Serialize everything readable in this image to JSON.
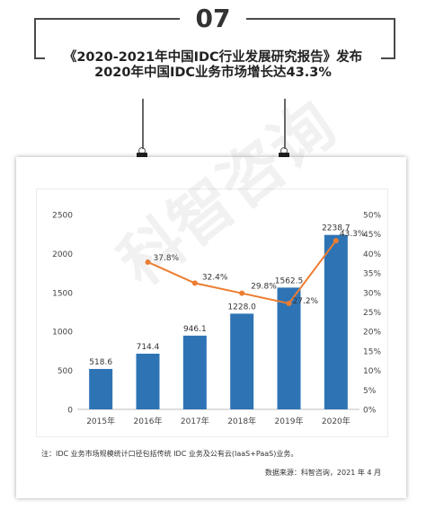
{
  "badge": "07",
  "headline": {
    "line1": "《2020-2021年中国IDC行业发展研究报告》发布",
    "line2": "2020年中国IDC业务市场增长达43.3%"
  },
  "watermark": "科智咨询",
  "note": "注：IDC 业务市场规模统计口径包括传统 IDC 业务及公有云(IaaS+PaaS)业务。",
  "source": "数据来源：科智咨询，2021 年 4 月",
  "colors": {
    "bar": "#2e74b5",
    "line": "#ed7d31"
  },
  "chart_data": {
    "type": "bar",
    "categories": [
      "2015年",
      "2016年",
      "2017年",
      "2018年",
      "2019年",
      "2020年"
    ],
    "series": [
      {
        "type": "bar",
        "axis": "left",
        "values": [
          518.6,
          714.4,
          946.1,
          1228.0,
          1562.5,
          2238.7
        ],
        "labels": [
          "518.6",
          "714.4",
          "946.1",
          "1228.0",
          "1562.5",
          "2238.7"
        ]
      },
      {
        "type": "line",
        "axis": "right",
        "values": [
          null,
          37.8,
          32.4,
          29.8,
          27.2,
          43.3
        ],
        "labels": [
          "",
          "37.8%",
          "32.4%",
          "29.8%",
          "27.2%",
          "43.3%"
        ]
      }
    ],
    "y_left": {
      "min": 0,
      "max": 2500,
      "ticks": [
        "0",
        "500",
        "1000",
        "1500",
        "2000",
        "2500"
      ]
    },
    "y_right": {
      "min": 0,
      "max": 50,
      "ticks": [
        "0%",
        "5%",
        "10%",
        "15%",
        "20%",
        "25%",
        "30%",
        "35%",
        "40%",
        "45%",
        "50%"
      ]
    },
    "grid": false,
    "legend": "none"
  }
}
